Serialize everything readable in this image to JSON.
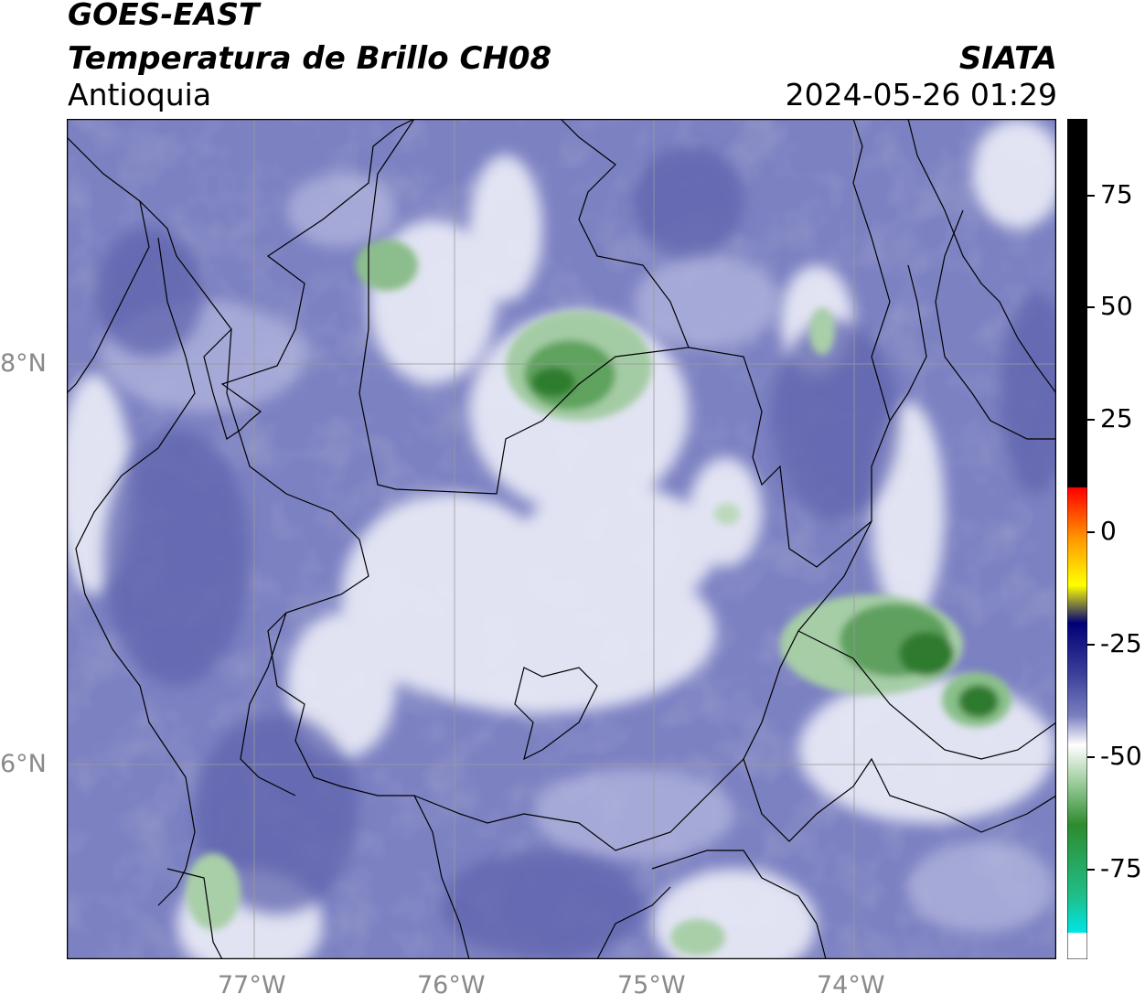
{
  "header": {
    "satellite": "GOES-EAST",
    "product": "Temperatura de Brillo CH08",
    "region": "Antioquia",
    "organization": "SIATA",
    "datetime": "2024-05-26 01:29"
  },
  "map": {
    "lat_labels": [
      "8°N",
      "6°N"
    ],
    "lon_labels": [
      "77°W",
      "76°W",
      "75°W",
      "74°W"
    ],
    "gridline_color": "#9a9a9a",
    "background_color": "#7a7fbf",
    "warm_zone_color": "#eef0f8",
    "cold_zone_color": "#3f8f3f"
  },
  "colorbar": {
    "tick_labels": [
      "75",
      "50",
      "25",
      "0",
      "-25",
      "-50",
      "-75"
    ],
    "tick_values": [
      75,
      50,
      25,
      0,
      -25,
      -50,
      -75
    ],
    "range": [
      -95,
      92
    ],
    "colors": {
      "top": "#000000",
      "red": "#ff0000",
      "orange": "#ff9900",
      "yellow": "#ffff00",
      "dark_blue": "#000077",
      "periwinkle": "#7a7fc0",
      "white": "#ffffff",
      "green": "#2e8b2e",
      "cyan": "#00e5e5"
    }
  }
}
